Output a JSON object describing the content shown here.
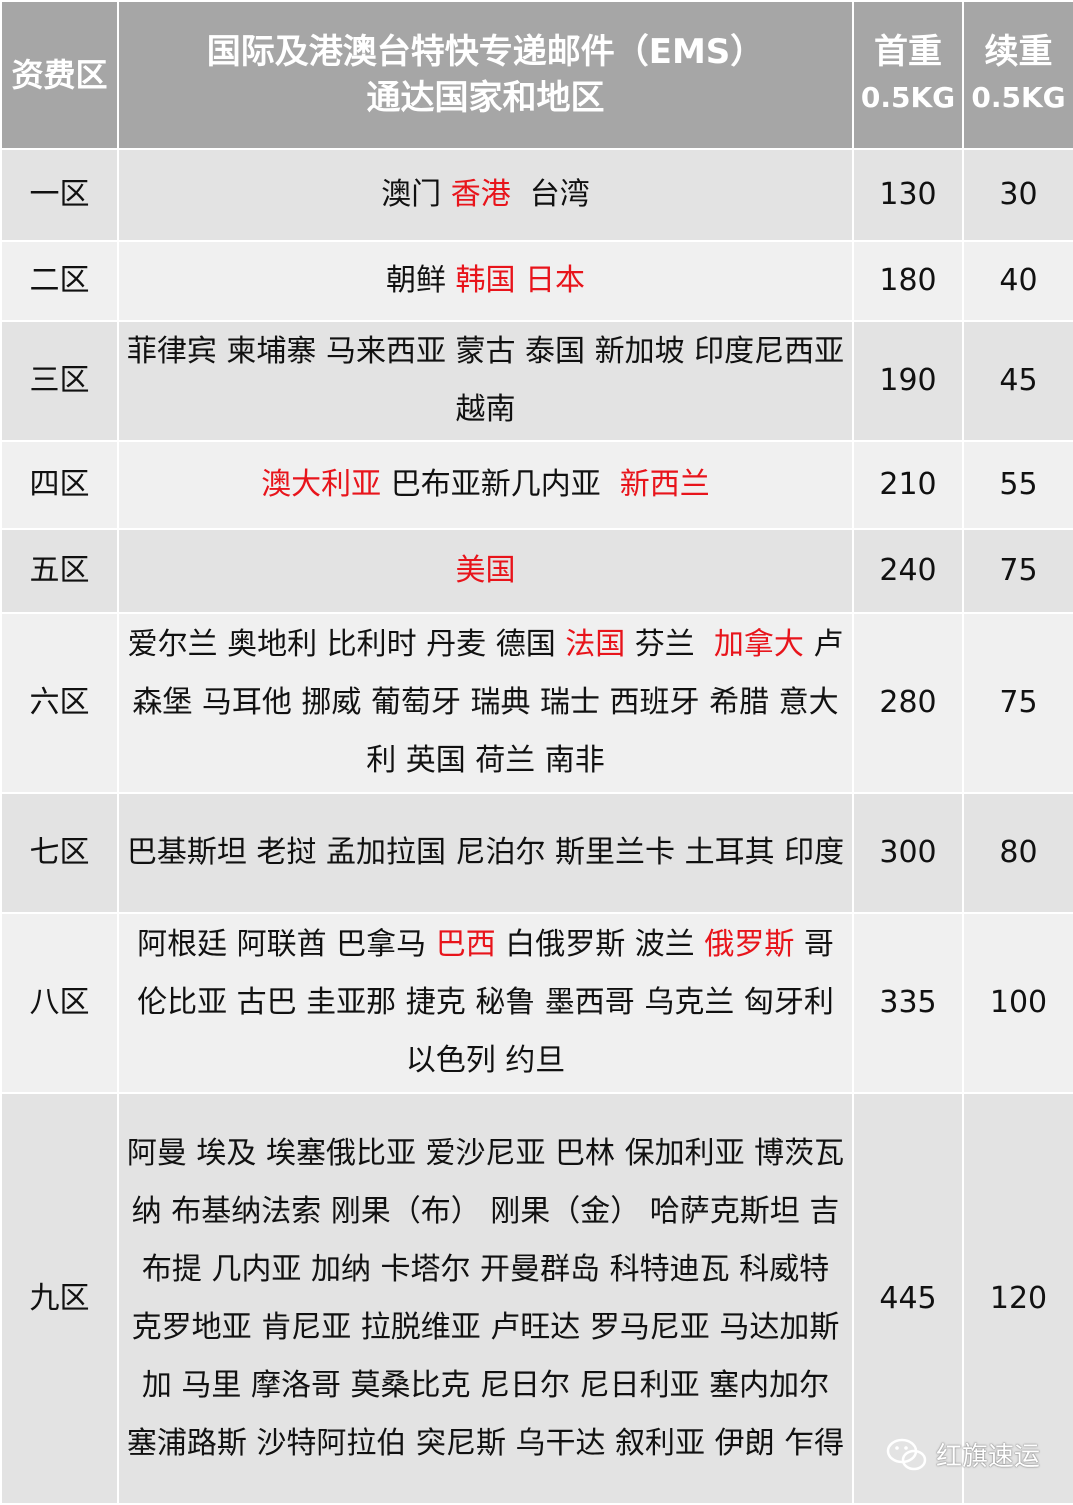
{
  "header": {
    "zone": "资费区",
    "title_line1": "国际及港澳台特快专递邮件（EMS）",
    "title_line2": "通达国家和地区",
    "first_weight": "首重",
    "first_unit": "0.5KG",
    "extra_weight": "续重",
    "extra_unit": "0.5KG"
  },
  "colors": {
    "header_bg": "#a6a6a6",
    "highlight": "#e8141b"
  },
  "rows": [
    {
      "zone": "一区",
      "first": "130",
      "extra": "30",
      "countries": [
        {
          "text": "澳门 ",
          "red": false
        },
        {
          "text": "香港",
          "red": true
        },
        {
          "text": "  台湾",
          "red": false
        }
      ]
    },
    {
      "zone": "二区",
      "first": "180",
      "extra": "40",
      "countries": [
        {
          "text": "朝鲜 ",
          "red": false
        },
        {
          "text": "韩国 日本",
          "red": true
        }
      ]
    },
    {
      "zone": "三区",
      "first": "190",
      "extra": "45",
      "countries": [
        {
          "text": "菲律宾 柬埔寨 马来西亚 蒙古 泰国 新加坡 印度尼西亚 越南",
          "red": false
        }
      ]
    },
    {
      "zone": "四区",
      "first": "210",
      "extra": "55",
      "countries": [
        {
          "text": "澳大利亚",
          "red": true
        },
        {
          "text": " 巴布亚新几内亚  ",
          "red": false
        },
        {
          "text": "新西兰",
          "red": true
        }
      ]
    },
    {
      "zone": "五区",
      "first": "240",
      "extra": "75",
      "countries": [
        {
          "text": "美国",
          "red": true
        }
      ]
    },
    {
      "zone": "六区",
      "first": "280",
      "extra": "75",
      "countries": [
        {
          "text": "爱尔兰 奥地利 比利时 丹麦 德国 ",
          "red": false
        },
        {
          "text": "法国",
          "red": true
        },
        {
          "text": " 芬兰  ",
          "red": false
        },
        {
          "text": "加拿大",
          "red": true
        },
        {
          "text": " 卢森堡 马耳他 挪威 葡萄牙 瑞典 瑞士 西班牙 希腊 意大利 英国 荷兰 南非",
          "red": false
        }
      ]
    },
    {
      "zone": "七区",
      "first": "300",
      "extra": "80",
      "countries": [
        {
          "text": "巴基斯坦 老挝 孟加拉国 尼泊尔 斯里兰卡 土耳其 印度",
          "red": false
        }
      ]
    },
    {
      "zone": "八区",
      "first": "335",
      "extra": "100",
      "countries": [
        {
          "text": "阿根廷 阿联酋 巴拿马 ",
          "red": false
        },
        {
          "text": "巴西",
          "red": true
        },
        {
          "text": " 白俄罗斯 波兰 ",
          "red": false
        },
        {
          "text": "俄罗斯",
          "red": true
        },
        {
          "text": " 哥伦比亚 古巴 圭亚那 捷克 秘鲁 墨西哥 乌克兰 匈牙利 以色列 约旦",
          "red": false
        }
      ]
    },
    {
      "zone": "九区",
      "first": "445",
      "extra": "120",
      "countries": [
        {
          "text": "阿曼 埃及 埃塞俄比亚 爱沙尼亚 巴林 保加利亚 博茨瓦纳 布基纳法索 刚果（布） 刚果（金） 哈萨克斯坦 吉布提 几内亚 加纳 卡塔尔 开曼群岛 科特迪瓦 科威特 克罗地亚 肯尼亚 拉脱维亚 卢旺达 罗马尼亚 马达加斯加 马里 摩洛哥 莫桑比克 尼日尔 尼日利亚 塞内加尔 塞浦路斯 沙特阿拉伯 突尼斯 乌干达 叙利亚 伊朗 乍得",
          "red": false
        }
      ]
    }
  ],
  "watermark": {
    "icon": "wechat-icon",
    "text": "红旗速运"
  }
}
